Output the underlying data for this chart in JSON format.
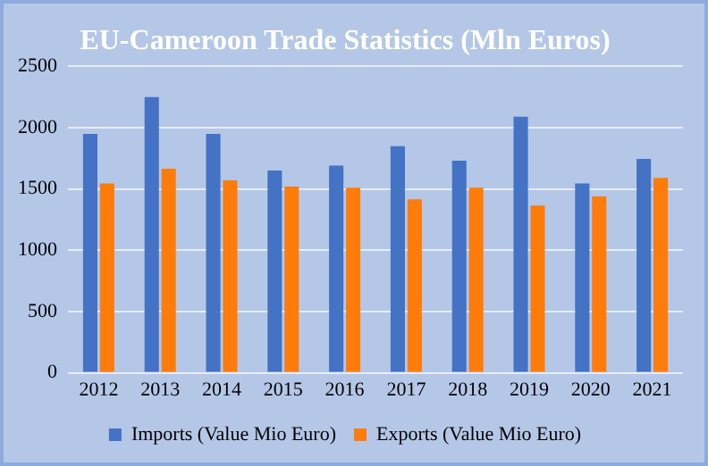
{
  "chart_data": {
    "type": "bar",
    "title": "EU-Cameroon Trade Statistics (Mln Euros)",
    "categories": [
      "2012",
      "2013",
      "2014",
      "2015",
      "2016",
      "2017",
      "2018",
      "2019",
      "2020",
      "2021"
    ],
    "series": [
      {
        "name": "Imports (Value Mio Euro)",
        "color": "#4472c4",
        "values": [
          1950,
          2250,
          1950,
          1650,
          1690,
          1850,
          1730,
          2090,
          1545,
          1745
        ]
      },
      {
        "name": "Exports (Value Mio Euro)",
        "color": "#ff7c0a",
        "values": [
          1545,
          1665,
          1570,
          1520,
          1510,
          1415,
          1510,
          1365,
          1440,
          1590
        ]
      }
    ],
    "ylim": [
      0,
      2500
    ],
    "yticks": [
      0,
      500,
      1000,
      1500,
      2000,
      2500
    ],
    "grid": "y",
    "legend": "bottom"
  }
}
